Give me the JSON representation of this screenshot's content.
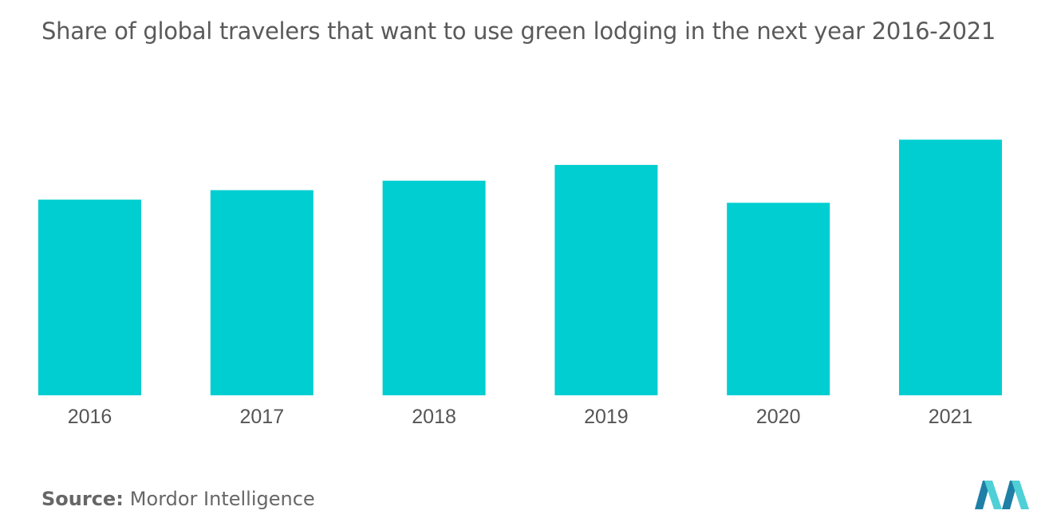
{
  "chart_data": {
    "type": "bar",
    "title": "Share of global travelers that want to use green lodging in the next year 2016-2021",
    "categories": [
      "2016",
      "2017",
      "2018",
      "2019",
      "2020",
      "2021"
    ],
    "values": [
      62,
      65,
      68,
      73,
      61,
      81
    ],
    "ylim": [
      0,
      100
    ],
    "xlabel": "",
    "ylabel": "",
    "grid": false,
    "legend": "none",
    "bar_color": "#00ced1"
  },
  "source": {
    "label": "Source:",
    "text": "Mordor Intelligence"
  },
  "colors": {
    "logo_dark": "#1f7fa6",
    "logo_light": "#4fd0d6"
  }
}
